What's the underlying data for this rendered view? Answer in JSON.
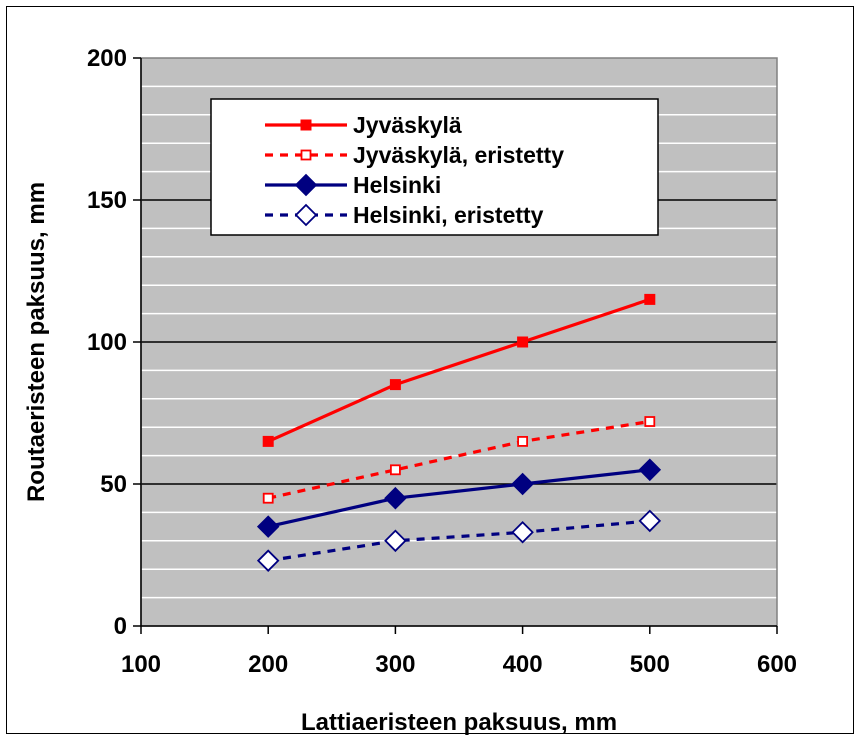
{
  "chart_data": {
    "type": "line",
    "xlabel": "Lattiaeristeen paksuus, mm",
    "ylabel": "Routaeristeen paksuus, mm",
    "xlim": [
      100,
      600
    ],
    "ylim": [
      0,
      200
    ],
    "x_ticks": [
      "100",
      "200",
      "300",
      "400",
      "500",
      "600"
    ],
    "y_ticks": [
      "0",
      "50",
      "100",
      "150",
      "200"
    ],
    "grid": "horizontal",
    "legend_placement": "top-left",
    "series": [
      {
        "name": "Jyväskylä",
        "x": [
          200,
          300,
          400,
          500
        ],
        "values": [
          65,
          85,
          100,
          115
        ],
        "color": "#ff0000",
        "dashed": false,
        "marker": "square-filled"
      },
      {
        "name": "Jyväskylä, eristetty",
        "x": [
          200,
          300,
          400,
          500
        ],
        "values": [
          45,
          55,
          65,
          72
        ],
        "color": "#ff0000",
        "dashed": true,
        "marker": "square-open"
      },
      {
        "name": "Helsinki",
        "x": [
          200,
          300,
          400,
          500
        ],
        "values": [
          35,
          45,
          50,
          55
        ],
        "color": "#000080",
        "dashed": false,
        "marker": "diamond-filled"
      },
      {
        "name": "Helsinki, eristetty",
        "x": [
          200,
          300,
          400,
          500
        ],
        "values": [
          23,
          30,
          33,
          37
        ],
        "color": "#000080",
        "dashed": true,
        "marker": "diamond-open"
      }
    ]
  }
}
